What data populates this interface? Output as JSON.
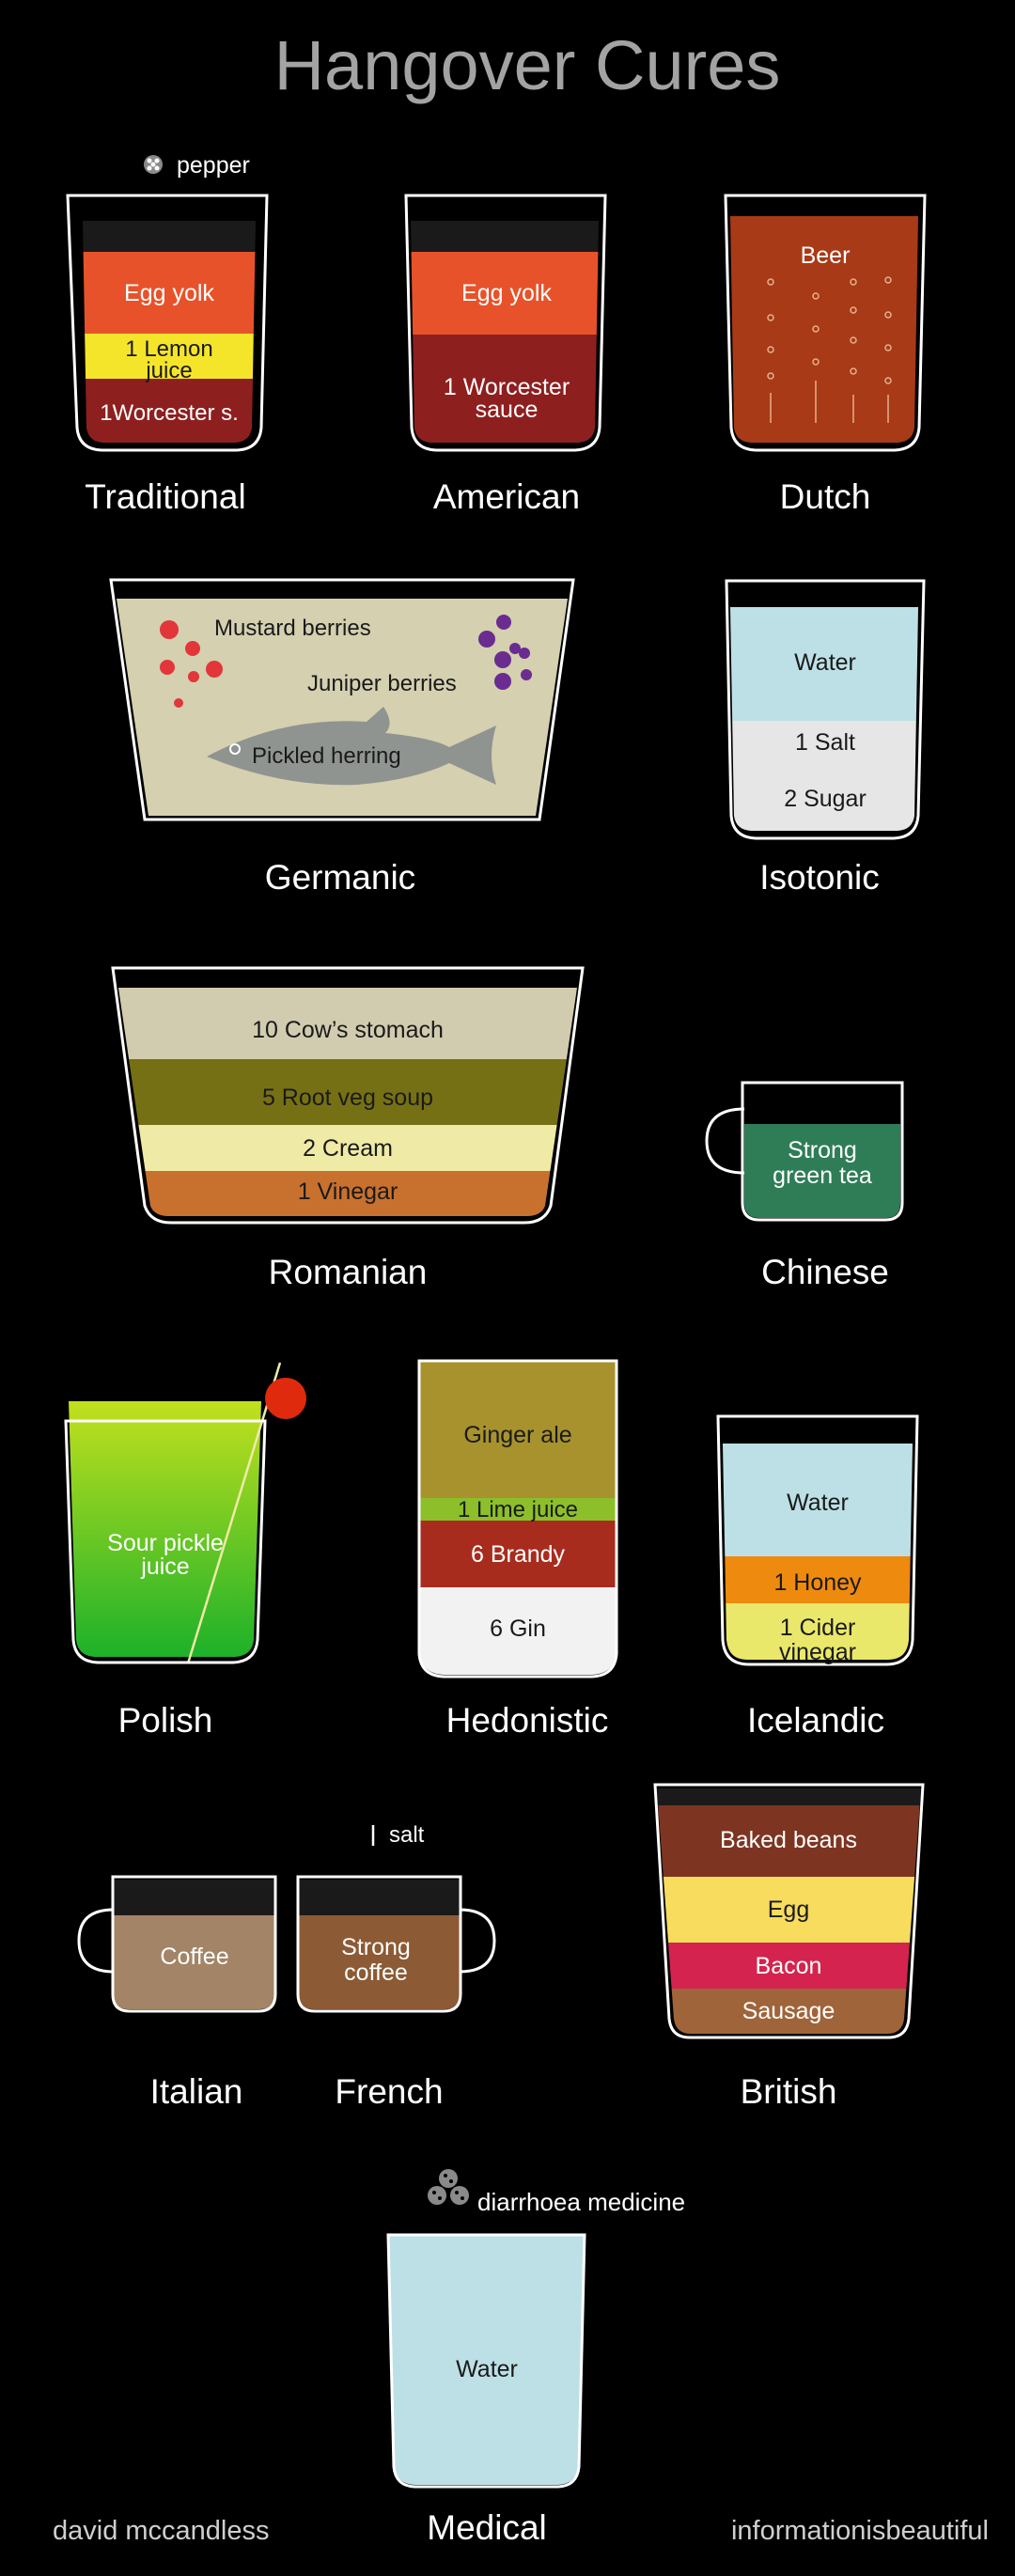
{
  "title": "Hangover Cures",
  "footer": {
    "left": "david mccandless",
    "right": "informationisbeautiful"
  },
  "colors": {
    "egg_yolk": "#e8522a",
    "lemon": "#f5e52a",
    "worcester": "#8e1f1f",
    "beer": "#a83a17",
    "herring_bg": "#d4d0b0",
    "fish": "#8f9491",
    "water": "#bde0e6",
    "salt_sugar": "#e6e6e6",
    "cow": "#d1ccaf",
    "root_veg": "#767014",
    "cream": "#efeaa5",
    "vinegar": "#c8702e",
    "green_tea": "#2e7d57",
    "pickle_top": "#c2e01e",
    "pickle_bottom": "#18b02a",
    "ginger_ale": "#a8922e",
    "lime": "#8cbf2a",
    "brandy": "#a82c1e",
    "gin": "#f2f2f2",
    "honey": "#ee8a0e",
    "cider": "#eae86a",
    "coffee": "#a38466",
    "strong_coffee": "#8c5a34",
    "baked_beans": "#7d3521",
    "egg": "#f7dc5e",
    "bacon": "#d4234e",
    "sausage": "#a0643a",
    "cherry": "#e02a0e",
    "mustard": "#e2363a",
    "juniper": "#6a2c8e"
  },
  "cures": {
    "traditional": {
      "name": "Traditional",
      "garnish": "pepper",
      "layers": [
        "Egg yolk",
        "1 Lemon",
        "juice",
        "1Worcester s."
      ]
    },
    "american": {
      "name": "American",
      "layers": [
        "Egg yolk",
        "1 Worcester",
        "sauce"
      ]
    },
    "dutch": {
      "name": "Dutch",
      "layers": [
        "Beer"
      ]
    },
    "germanic": {
      "name": "Germanic",
      "items": [
        "Mustard berries",
        "Juniper berries",
        "Pickled herring"
      ]
    },
    "isotonic": {
      "name": "Isotonic",
      "layers": [
        "Water",
        "1 Salt",
        "2 Sugar"
      ]
    },
    "romanian": {
      "name": "Romanian",
      "layers": [
        "10  Cow’s stomach",
        "5 Root veg soup",
        "2 Cream",
        "1 Vinegar"
      ]
    },
    "chinese": {
      "name": "Chinese",
      "layers": [
        "Strong",
        "green tea"
      ]
    },
    "polish": {
      "name": "Polish",
      "layers": [
        "Sour pickle",
        "juice"
      ]
    },
    "hedonistic": {
      "name": "Hedonistic",
      "layers": [
        "Ginger ale",
        "1 Lime juice",
        "6 Brandy",
        "6 Gin"
      ]
    },
    "icelandic": {
      "name": "Icelandic",
      "layers": [
        "Water",
        "1 Honey",
        "1 Cider",
        "vinegar"
      ]
    },
    "italian": {
      "name": "Italian",
      "layers": [
        "Coffee"
      ]
    },
    "french": {
      "name": "French",
      "garnish": "salt",
      "layers": [
        "Strong",
        "coffee"
      ]
    },
    "british": {
      "name": "British",
      "layers": [
        "Baked beans",
        "Egg",
        "Bacon",
        "Sausage"
      ]
    },
    "medical": {
      "name": "Medical",
      "garnish": "diarrhoea medicine",
      "layers": [
        "Water"
      ]
    }
  }
}
